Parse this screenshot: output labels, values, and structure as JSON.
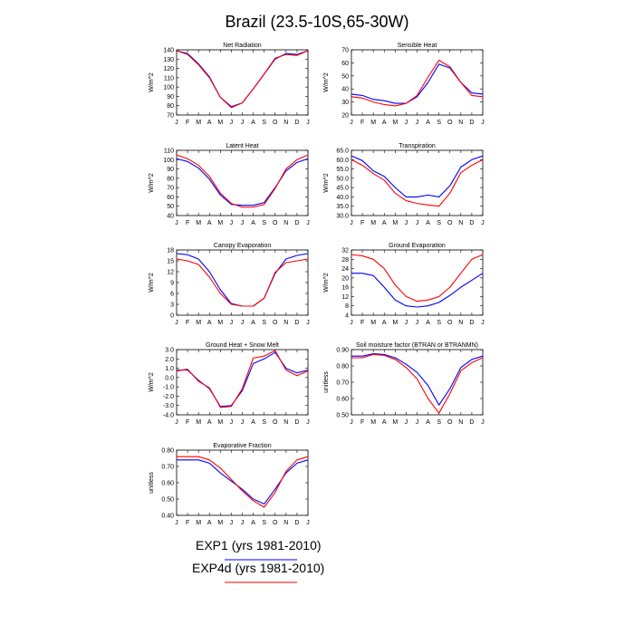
{
  "title": "Brazil (23.5-10S,65-30W)",
  "months": [
    "J",
    "F",
    "M",
    "A",
    "M",
    "J",
    "J",
    "A",
    "S",
    "O",
    "N",
    "D",
    "J"
  ],
  "colors": {
    "exp1": "#0000ff",
    "exp2": "#ff0000"
  },
  "legend": {
    "exp1_label": "EXP1 (yrs 1981-2010)",
    "exp2_label": "EXP4d (yrs 1981-2010)"
  },
  "chart_data": [
    {
      "type": "line",
      "title": "Net Radiation",
      "ylabel": "W/m^2",
      "ylim": [
        70,
        140
      ],
      "yticks": [
        "70",
        "80",
        "90",
        "100",
        "110",
        "120",
        "130",
        "140"
      ],
      "ytick_values": [
        70,
        80,
        90,
        100,
        110,
        120,
        130,
        140
      ],
      "series": [
        {
          "name": "EXP1 (yrs 1981-2010)",
          "values": [
            139,
            136,
            125,
            111,
            89,
            79,
            83,
            98,
            114,
            130,
            136,
            135,
            139
          ]
        },
        {
          "name": "EXP4d (yrs 1981-2010)",
          "values": [
            139,
            135,
            124,
            110,
            89,
            78,
            83,
            98,
            114,
            131,
            135,
            134,
            139
          ]
        }
      ]
    },
    {
      "type": "line",
      "title": "Sensible Heat",
      "ylabel": "W/m^2",
      "ylim": [
        20,
        70
      ],
      "yticks": [
        "20",
        "30",
        "40",
        "50",
        "60",
        "70"
      ],
      "ytick_values": [
        20,
        30,
        40,
        50,
        60,
        70
      ],
      "series": [
        {
          "name": "EXP1 (yrs 1981-2010)",
          "values": [
            36,
            35,
            32,
            31,
            29,
            29,
            34,
            45,
            59,
            56,
            45,
            37,
            36
          ]
        },
        {
          "name": "EXP4d (yrs 1981-2010)",
          "values": [
            34,
            33,
            30,
            28,
            27,
            29,
            35,
            49,
            62,
            57,
            45,
            35,
            34
          ]
        }
      ]
    },
    {
      "type": "line",
      "title": "Latent Heat",
      "ylabel": "W/m^2",
      "ylim": [
        40,
        110
      ],
      "yticks": [
        "40",
        "50",
        "60",
        "70",
        "80",
        "90",
        "100",
        "110"
      ],
      "ytick_values": [
        40,
        50,
        60,
        70,
        80,
        90,
        100,
        110
      ],
      "series": [
        {
          "name": "EXP1 (yrs 1981-2010)",
          "values": [
            101,
            98,
            91,
            79,
            62,
            52,
            51,
            51,
            54,
            70,
            88,
            97,
            101
          ]
        },
        {
          "name": "EXP4d (yrs 1981-2010)",
          "values": [
            105,
            101,
            94,
            82,
            64,
            53,
            49,
            49,
            52,
            69,
            90,
            100,
            105
          ]
        }
      ]
    },
    {
      "type": "line",
      "title": "Transpiration",
      "ylabel": "W/m^2",
      "ylim": [
        30,
        65
      ],
      "yticks": [
        "30.0",
        "35.0",
        "40.0",
        "45.0",
        "50.0",
        "55.0",
        "60.0",
        "65.0"
      ],
      "ytick_values": [
        30,
        35,
        40,
        45,
        50,
        55,
        60,
        65
      ],
      "series": [
        {
          "name": "EXP1 (yrs 1981-2010)",
          "values": [
            62,
            59.5,
            54,
            51,
            45,
            40,
            40,
            41,
            40,
            46,
            56,
            60,
            62
          ]
        },
        {
          "name": "EXP4d (yrs 1981-2010)",
          "values": [
            60,
            57,
            52.5,
            49,
            42,
            38,
            36.5,
            35.7,
            35,
            42,
            53,
            57,
            60
          ]
        }
      ]
    },
    {
      "type": "line",
      "title": "Canopy Evaporation",
      "ylabel": "W/m^2",
      "ylim": [
        0,
        18
      ],
      "yticks": [
        "0",
        "3",
        "6",
        "9",
        "12",
        "15",
        "18"
      ],
      "ytick_values": [
        0,
        3,
        6,
        9,
        12,
        15,
        18
      ],
      "series": [
        {
          "name": "EXP1 (yrs 1981-2010)",
          "values": [
            17,
            16.7,
            15.5,
            12,
            7,
            3.2,
            2.5,
            2.5,
            4.7,
            11.5,
            15.5,
            16.5,
            17
          ]
        },
        {
          "name": "EXP4d (yrs 1981-2010)",
          "values": [
            15.5,
            15,
            14,
            10.5,
            6,
            3,
            2.5,
            2.5,
            4.7,
            11.8,
            14.5,
            15,
            15.5
          ]
        }
      ]
    },
    {
      "type": "line",
      "title": "Ground Evaporation",
      "ylabel": "W/m^2",
      "ylim": [
        4,
        32
      ],
      "yticks": [
        "4",
        "8",
        "12",
        "16",
        "20",
        "24",
        "28",
        "32"
      ],
      "ytick_values": [
        4,
        8,
        12,
        16,
        20,
        24,
        28,
        32
      ],
      "series": [
        {
          "name": "EXP1 (yrs 1981-2010)",
          "values": [
            22,
            22,
            21,
            16,
            10.5,
            8,
            7.5,
            8,
            9.5,
            12.5,
            16,
            19,
            22
          ]
        },
        {
          "name": "EXP4d (yrs 1981-2010)",
          "values": [
            30,
            29.5,
            28,
            24,
            17,
            12,
            10,
            10.5,
            12,
            16,
            22,
            28,
            30
          ]
        }
      ]
    },
    {
      "type": "line",
      "title": "Ground Heat + Snow Melt",
      "ylabel": "W/m^2",
      "ylim": [
        -4,
        3
      ],
      "yticks": [
        "-4.0",
        "-3.0",
        "-2.0",
        "-1.0",
        "0.0",
        "1.0",
        "2.0",
        "3.0"
      ],
      "ytick_values": [
        -4,
        -3,
        -2,
        -1,
        0,
        1,
        2,
        3
      ],
      "series": [
        {
          "name": "EXP1 (yrs 1981-2010)",
          "values": [
            0.8,
            0.8,
            -0.3,
            -1.2,
            -3.1,
            -3.0,
            -1.4,
            1.5,
            2.0,
            2.7,
            1.0,
            0.5,
            0.8
          ]
        },
        {
          "name": "EXP4d (yrs 1981-2010)",
          "values": [
            0.7,
            0.9,
            -0.4,
            -1.1,
            -3.2,
            -3.1,
            -1.2,
            2.1,
            2.3,
            2.9,
            0.8,
            0.2,
            0.7
          ]
        }
      ]
    },
    {
      "type": "line",
      "title": "Soil moisture factor (BTRAN or BTRANMN)",
      "ylabel": "unitless",
      "ylim": [
        0.5,
        0.9
      ],
      "yticks": [
        "0.50",
        "0.60",
        "0.70",
        "0.80",
        "0.90"
      ],
      "ytick_values": [
        0.5,
        0.6,
        0.7,
        0.8,
        0.9
      ],
      "series": [
        {
          "name": "EXP1 (yrs 1981-2010)",
          "values": [
            0.86,
            0.86,
            0.875,
            0.87,
            0.85,
            0.81,
            0.76,
            0.68,
            0.56,
            0.66,
            0.79,
            0.84,
            0.86
          ]
        },
        {
          "name": "EXP4d (yrs 1981-2010)",
          "values": [
            0.85,
            0.85,
            0.87,
            0.865,
            0.84,
            0.79,
            0.72,
            0.6,
            0.51,
            0.63,
            0.77,
            0.82,
            0.85
          ]
        }
      ]
    },
    {
      "type": "line",
      "title": "Evaporative Fraction",
      "ylabel": "unitless",
      "ylim": [
        0.4,
        0.8
      ],
      "yticks": [
        "0.40",
        "0.50",
        "0.60",
        "0.70",
        "0.80"
      ],
      "ytick_values": [
        0.4,
        0.5,
        0.6,
        0.7,
        0.8
      ],
      "series": [
        {
          "name": "EXP1 (yrs 1981-2010)",
          "values": [
            0.74,
            0.74,
            0.74,
            0.72,
            0.66,
            0.61,
            0.56,
            0.5,
            0.47,
            0.56,
            0.66,
            0.72,
            0.74
          ]
        },
        {
          "name": "EXP4d (yrs 1981-2010)",
          "values": [
            0.76,
            0.76,
            0.76,
            0.74,
            0.69,
            0.62,
            0.55,
            0.49,
            0.45,
            0.54,
            0.67,
            0.74,
            0.76
          ]
        }
      ]
    }
  ]
}
